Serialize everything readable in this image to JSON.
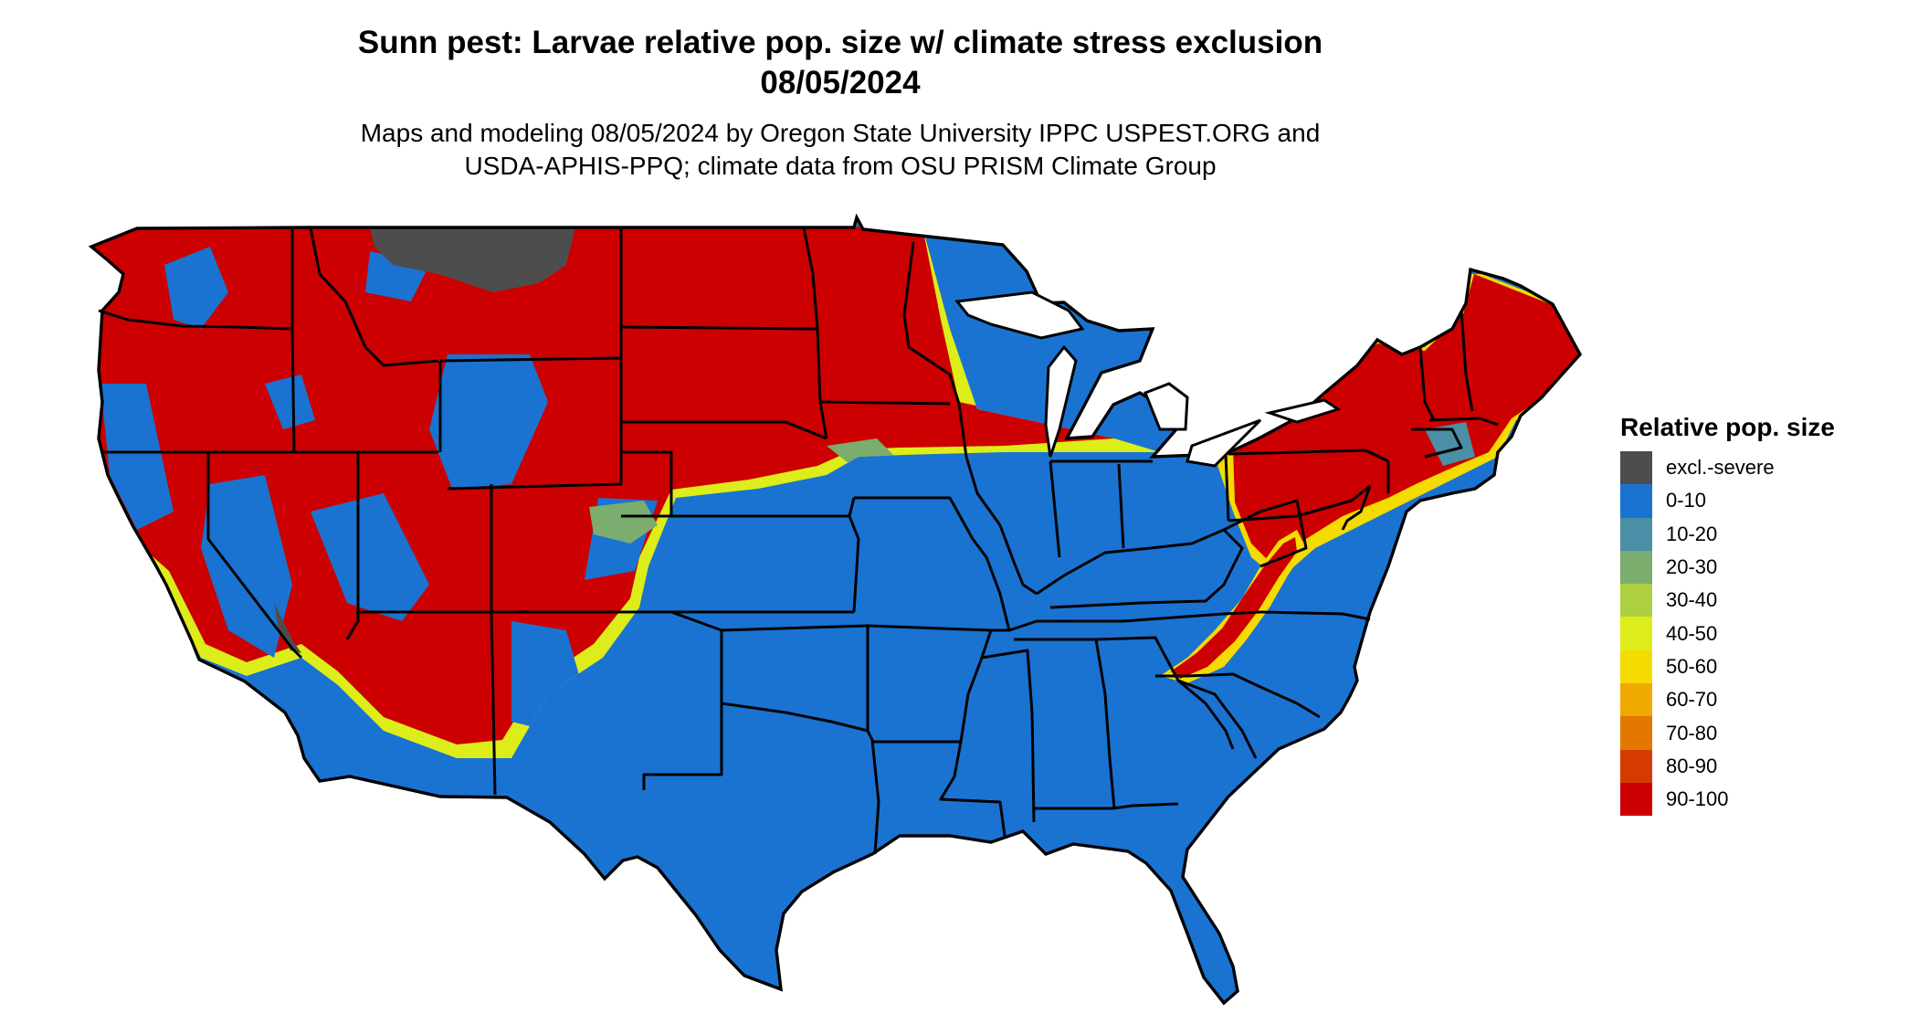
{
  "title": {
    "line1": "Sunn pest: Larvae relative pop. size w/ climate stress exclusion",
    "line2": "08/05/2024"
  },
  "subtitle": {
    "line1": "Maps and modeling 08/05/2024 by Oregon State University IPPC USPEST.ORG and",
    "line2": "USDA-APHIS-PPQ; climate data from OSU PRISM Climate Group"
  },
  "legend": {
    "title": "Relative pop. size",
    "items": [
      {
        "label": "excl.-severe",
        "color": "#4d4d4d"
      },
      {
        "label": "0-10",
        "color": "#1a73d1"
      },
      {
        "label": "10-20",
        "color": "#4a8fa6"
      },
      {
        "label": "20-30",
        "color": "#7aad6e"
      },
      {
        "label": "30-40",
        "color": "#aecf3f"
      },
      {
        "label": "40-50",
        "color": "#dced1a"
      },
      {
        "label": "50-60",
        "color": "#f4db00"
      },
      {
        "label": "60-70",
        "color": "#eeaa00"
      },
      {
        "label": "70-80",
        "color": "#e27800"
      },
      {
        "label": "80-90",
        "color": "#d63a00"
      },
      {
        "label": "90-100",
        "color": "#cc0000"
      }
    ]
  },
  "map": {
    "region": "contiguous United States",
    "state_border_color": "#000000"
  }
}
